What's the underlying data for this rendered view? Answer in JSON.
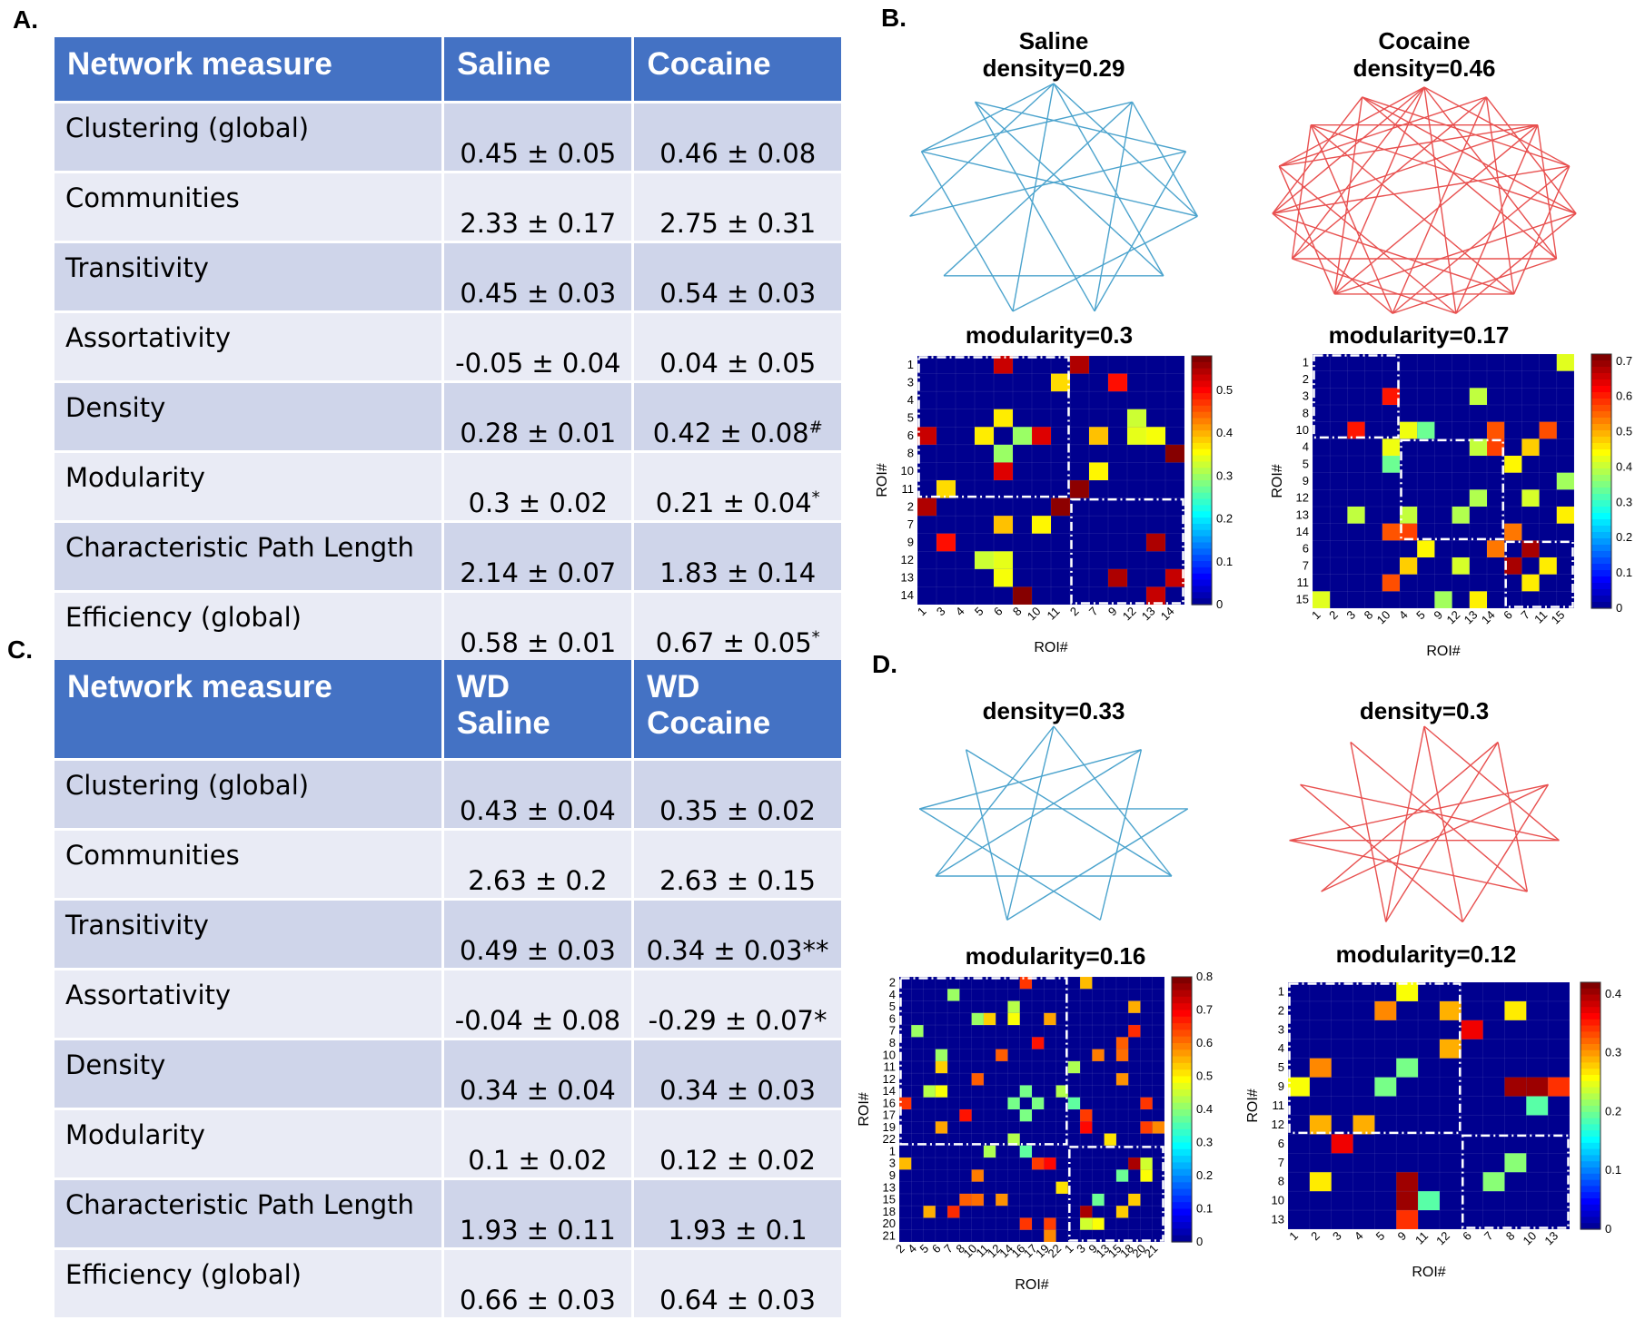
{
  "panels": {
    "a": "A.",
    "b": "B.",
    "c": "C.",
    "d": "D."
  },
  "table_a": {
    "headers": [
      "Network measure",
      "Saline",
      "Cocaine"
    ],
    "rows": [
      {
        "measure": "Clustering (global)",
        "v1": "0.45 ± 0.05",
        "v2": "0.46 ± 0.08",
        "m2": ""
      },
      {
        "measure": "Communities",
        "v1": "2.33 ± 0.17",
        "v2": "2.75 ± 0.31",
        "m2": ""
      },
      {
        "measure": "Transitivity",
        "v1": "0.45 ± 0.03",
        "v2": "0.54 ± 0.03",
        "m2": ""
      },
      {
        "measure": "Assortativity",
        "v1": "-0.05 ± 0.04",
        "v2": "0.04 ± 0.05",
        "m2": ""
      },
      {
        "measure": "Density",
        "v1": "0.28 ± 0.01",
        "v2": "0.42 ± 0.08",
        "m2": "#"
      },
      {
        "measure": "Modularity",
        "v1": "0.3 ± 0.02",
        "v2": "0.21 ± 0.04",
        "m2": "*"
      },
      {
        "measure": "Characteristic Path Length",
        "v1": "2.14 ± 0.07",
        "v2": "1.83 ± 0.14",
        "m2": ""
      },
      {
        "measure": "Efficiency (global)",
        "v1": "0.58 ± 0.01",
        "v2": "0.67 ± 0.05",
        "m2": "*"
      }
    ]
  },
  "table_c": {
    "headers": [
      "Network measure",
      "WD Saline",
      "WD Cocaine"
    ],
    "header_lines": [
      [
        "Network measure"
      ],
      [
        "WD",
        "Saline"
      ],
      [
        "WD",
        "Cocaine"
      ]
    ],
    "rows": [
      {
        "measure": "Clustering (global)",
        "v1": "0.43 ± 0.04",
        "v2": "0.35 ± 0.02"
      },
      {
        "measure": "Communities",
        "v1": "2.63 ± 0.2",
        "v2": "2.63 ± 0.15"
      },
      {
        "measure": "Transitivity",
        "v1": "0.49 ± 0.03",
        "v2": "0.34 ± 0.03**"
      },
      {
        "measure": "Assortativity",
        "v1": "-0.04 ± 0.08",
        "v2": "-0.29 ± 0.07*"
      },
      {
        "measure": "Density",
        "v1": "0.34 ± 0.04",
        "v2": "0.34 ± 0.03"
      },
      {
        "measure": "Modularity",
        "v1": "0.1 ± 0.02",
        "v2": "0.12 ± 0.02"
      },
      {
        "measure": "Characteristic Path Length",
        "v1": "1.93 ± 0.11",
        "v2": "1.93 ± 0.1"
      },
      {
        "measure": "Efficiency (global)",
        "v1": "0.66 ± 0.03",
        "v2": "0.64 ± 0.03"
      }
    ]
  },
  "colors": {
    "header_bg": "#4472c4",
    "row_odd": "#cfd5ea",
    "row_even": "#e9ebf5",
    "saline_edge": "#4ba3cd",
    "cocaine_edge": "#e8504f",
    "matrix_bg": "#00008f"
  },
  "networks": [
    {
      "id": "B-saline",
      "lines": [
        "Saline",
        "density=0.29"
      ],
      "edge_color": "#4ba3cd",
      "n_nodes": 11,
      "edges": [
        [
          0,
          3
        ],
        [
          0,
          4
        ],
        [
          0,
          6
        ],
        [
          0,
          8
        ],
        [
          1,
          5
        ],
        [
          1,
          7
        ],
        [
          1,
          9
        ],
        [
          2,
          5
        ],
        [
          2,
          8
        ],
        [
          2,
          10
        ],
        [
          3,
          6
        ],
        [
          3,
          9
        ],
        [
          4,
          7
        ],
        [
          4,
          10
        ],
        [
          5,
          10
        ],
        [
          6,
          9
        ],
        [
          0,
          9
        ],
        [
          1,
          3
        ]
      ]
    },
    {
      "id": "B-cocaine",
      "lines": [
        "Cocaine",
        "density=0.46"
      ],
      "edge_color": "#e8504f",
      "n_nodes": 15,
      "edges": [
        [
          0,
          3
        ],
        [
          0,
          5
        ],
        [
          0,
          7
        ],
        [
          0,
          9
        ],
        [
          0,
          11
        ],
        [
          1,
          4
        ],
        [
          1,
          6
        ],
        [
          1,
          8
        ],
        [
          1,
          10
        ],
        [
          2,
          5
        ],
        [
          2,
          7
        ],
        [
          2,
          9
        ],
        [
          2,
          12
        ],
        [
          3,
          6
        ],
        [
          3,
          8
        ],
        [
          3,
          11
        ],
        [
          4,
          7
        ],
        [
          4,
          9
        ],
        [
          4,
          13
        ],
        [
          5,
          8
        ],
        [
          5,
          10
        ],
        [
          5,
          14
        ],
        [
          6,
          9
        ],
        [
          6,
          11
        ],
        [
          7,
          10
        ],
        [
          7,
          12
        ],
        [
          8,
          11
        ],
        [
          8,
          13
        ],
        [
          9,
          12
        ],
        [
          9,
          14
        ],
        [
          10,
          13
        ],
        [
          11,
          14
        ],
        [
          12,
          0
        ],
        [
          13,
          2
        ],
        [
          14,
          4
        ],
        [
          6,
          13
        ],
        [
          1,
          12
        ],
        [
          3,
          14
        ],
        [
          10,
          0
        ],
        [
          11,
          2
        ]
      ]
    },
    {
      "id": "D-saline",
      "lines": [
        "density=0.33"
      ],
      "edge_color": "#4ba3cd",
      "n_nodes": 9,
      "edges": [
        [
          0,
          3
        ],
        [
          0,
          5
        ],
        [
          1,
          4
        ],
        [
          1,
          6
        ],
        [
          2,
          5
        ],
        [
          2,
          7
        ],
        [
          3,
          6
        ],
        [
          3,
          8
        ],
        [
          4,
          7
        ],
        [
          5,
          8
        ],
        [
          6,
          0
        ],
        [
          7,
          1
        ]
      ]
    },
    {
      "id": "D-cocaine",
      "lines": [
        "density=0.3"
      ],
      "edge_color": "#e8504f",
      "n_nodes": 11,
      "edges": [
        [
          0,
          3
        ],
        [
          0,
          6
        ],
        [
          1,
          4
        ],
        [
          1,
          7
        ],
        [
          2,
          5
        ],
        [
          2,
          8
        ],
        [
          3,
          9
        ],
        [
          4,
          10
        ],
        [
          5,
          0
        ],
        [
          6,
          1
        ],
        [
          7,
          2
        ],
        [
          8,
          3
        ],
        [
          9,
          5
        ],
        [
          10,
          6
        ],
        [
          4,
          8
        ]
      ]
    }
  ],
  "matrices": [
    {
      "id": "B-saline-mat",
      "title": "modularity=0.3",
      "ylabel": "ROI#",
      "xlabel": "ROI#",
      "y_labels": [
        "1",
        "3",
        "4",
        "5",
        "6",
        "8",
        "10",
        "11",
        "2",
        "7",
        "9",
        "12",
        "13",
        "14"
      ],
      "x_labels": [
        "1",
        "3",
        "4",
        "5",
        "6",
        "8",
        "10",
        "11",
        "2",
        "7",
        "9",
        "12",
        "13",
        "14"
      ],
      "cbar_ticks": [
        "0.5",
        "0.4",
        "0.3",
        "0.2",
        "0.1",
        "0"
      ],
      "cbar_max": 0.58,
      "module_splits": [
        8
      ]
    },
    {
      "id": "B-cocaine-mat",
      "title": "modularity=0.17",
      "ylabel": "ROI#",
      "xlabel": "ROI#",
      "y_labels": [
        "1",
        "2",
        "3",
        "8",
        "10",
        "4",
        "5",
        "9",
        "12",
        "13",
        "14",
        "6",
        "7",
        "11",
        "15"
      ],
      "x_labels": [
        "1",
        "2",
        "3",
        "8",
        "10",
        "4",
        "5",
        "9",
        "12",
        "13",
        "14",
        "6",
        "7",
        "11",
        "15"
      ],
      "cbar_ticks": [
        "0.7",
        "0.6",
        "0.5",
        "0.4",
        "0.3",
        "0.2",
        "0.1",
        "0"
      ],
      "cbar_max": 0.72,
      "module_splits": [
        5,
        11
      ]
    },
    {
      "id": "D-saline-mat",
      "title": "modularity=0.16",
      "ylabel": "ROI#",
      "xlabel": "ROI#",
      "y_labels": [
        "2",
        "4",
        "5",
        "6",
        "7",
        "8",
        "10",
        "11",
        "12",
        "14",
        "16",
        "17",
        "19",
        "22",
        "1",
        "3",
        "9",
        "13",
        "15",
        "18",
        "20",
        "21"
      ],
      "x_labels": [
        "2",
        "4",
        "5",
        "6",
        "7",
        "8",
        "10",
        "11",
        "12",
        "14",
        "16",
        "17",
        "19",
        "22",
        "1",
        "3",
        "9",
        "13",
        "15",
        "18",
        "20",
        "21"
      ],
      "cbar_ticks": [
        "0.8",
        "0.7",
        "0.6",
        "0.5",
        "0.4",
        "0.3",
        "0.2",
        "0.1",
        "0"
      ],
      "cbar_max": 0.8,
      "module_splits": [
        14
      ]
    },
    {
      "id": "D-cocaine-mat",
      "title": "modularity=0.12",
      "ylabel": "ROI#",
      "xlabel": "ROI#",
      "y_labels": [
        "1",
        "2",
        "3",
        "4",
        "5",
        "9",
        "11",
        "12",
        "6",
        "7",
        "8",
        "10",
        "13"
      ],
      "x_labels": [
        "1",
        "2",
        "3",
        "4",
        "5",
        "9",
        "11",
        "12",
        "6",
        "7",
        "8",
        "10",
        "13"
      ],
      "cbar_ticks": [
        "0.4",
        "0.3",
        "0.2",
        "0.1",
        "0"
      ],
      "cbar_max": 0.42,
      "module_splits": [
        8
      ]
    }
  ]
}
